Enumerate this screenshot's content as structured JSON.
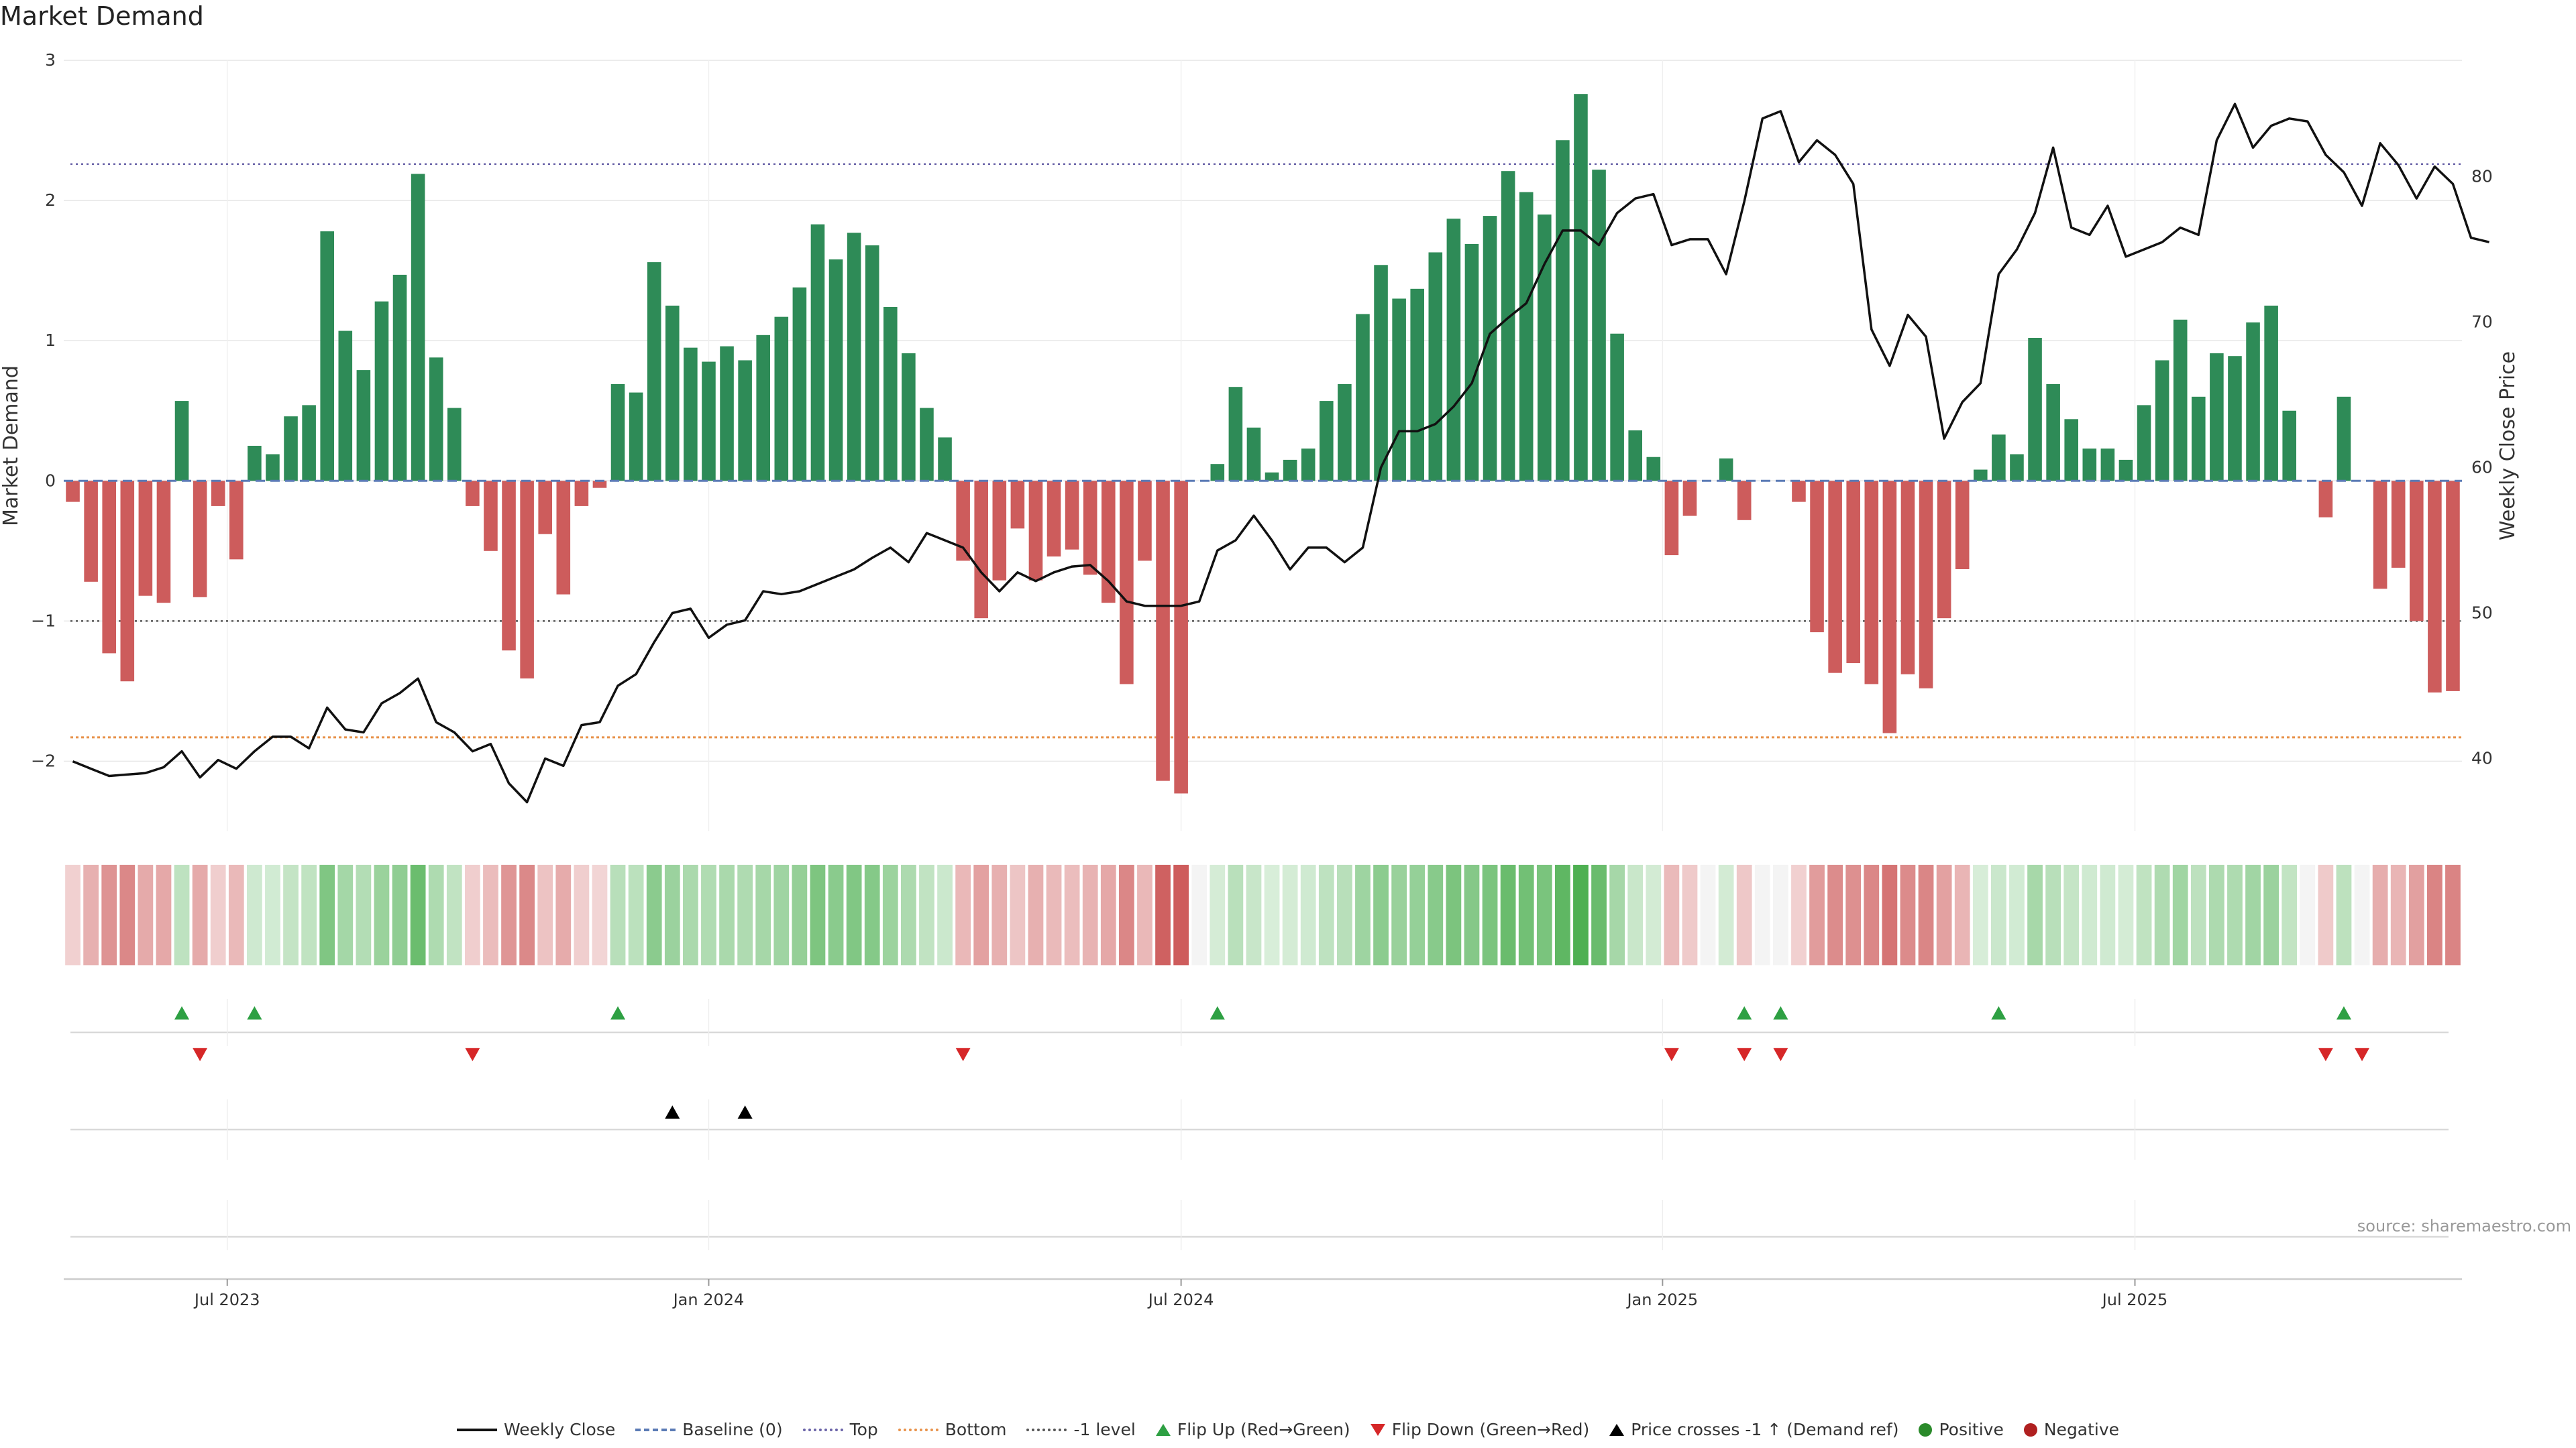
{
  "title": "Market Demand",
  "source": "source: sharemaestro.com",
  "chart_data": {
    "type": "bar",
    "start": "2023-04-26",
    "interval_days": 7,
    "title": "Market Demand",
    "ylabel_left": "Market Demand",
    "ylabel_right": "Weekly Close Price",
    "ylim_left": [
      -2.5,
      3
    ],
    "ylim_right": [
      35,
      88
    ],
    "yticks_left": [
      3,
      2,
      1,
      0,
      -1,
      -2
    ],
    "yticks_left_labels": [
      "3",
      "2",
      "1",
      "0",
      "−1",
      "−2"
    ],
    "yticks_right": [
      80,
      70,
      60,
      50,
      40
    ],
    "xticks": [
      {
        "label": "Jul 2023",
        "week": 9
      },
      {
        "label": "Jan 2024",
        "week": 35.5
      },
      {
        "label": "Jul 2024",
        "week": 61.5
      },
      {
        "label": "Jan 2025",
        "week": 88
      },
      {
        "label": "Jul 2025",
        "week": 114
      }
    ],
    "levels": {
      "top": 2.26,
      "bottom": -1.83,
      "minus_one": -1.0,
      "baseline": 0
    },
    "demand": [
      -0.15,
      -0.72,
      -1.23,
      -1.43,
      -0.82,
      -0.87,
      0.57,
      -0.83,
      -0.18,
      -0.56,
      0.25,
      0.19,
      0.46,
      0.54,
      1.78,
      1.07,
      0.79,
      1.28,
      1.47,
      2.19,
      0.88,
      0.52,
      -0.18,
      -0.5,
      -1.21,
      -1.41,
      -0.38,
      -0.81,
      -0.18,
      -0.05,
      0.69,
      0.63,
      1.56,
      1.25,
      0.95,
      0.85,
      0.96,
      0.86,
      1.04,
      1.17,
      1.38,
      1.83,
      1.58,
      1.77,
      1.68,
      1.24,
      0.91,
      0.52,
      0.31,
      -0.57,
      -0.98,
      -0.71,
      -0.34,
      -0.71,
      -0.54,
      -0.49,
      -0.67,
      -0.87,
      -1.45,
      -0.57,
      -2.14,
      -2.23,
      0.0,
      0.12,
      0.67,
      0.38,
      0.06,
      0.15,
      0.23,
      0.57,
      0.69,
      1.19,
      1.54,
      1.3,
      1.37,
      1.63,
      1.87,
      1.69,
      1.89,
      2.21,
      2.06,
      1.9,
      2.43,
      2.76,
      2.22,
      1.05,
      0.36,
      0.17,
      -0.53,
      -0.25,
      0.0,
      0.16,
      -0.28,
      0.0,
      0.0,
      -0.15,
      -1.08,
      -1.37,
      -1.3,
      -1.45,
      -1.8,
      -1.38,
      -1.48,
      -0.98,
      -0.63,
      0.08,
      0.33,
      0.19,
      1.02,
      0.69,
      0.44,
      0.23,
      0.23,
      0.15,
      0.54,
      0.86,
      1.15,
      0.6,
      0.91,
      0.89,
      1.13,
      1.25,
      0.5,
      0.0,
      -0.26,
      0.6,
      0.0,
      -0.77,
      -0.62,
      -1.0,
      -1.51,
      -1.5
    ],
    "close": [
      39.8,
      39.3,
      38.8,
      38.9,
      39.0,
      39.4,
      40.5,
      38.7,
      39.9,
      39.3,
      40.5,
      41.5,
      41.5,
      40.7,
      43.5,
      42.0,
      41.8,
      43.8,
      44.5,
      45.5,
      42.5,
      41.8,
      40.5,
      41.0,
      38.3,
      37.0,
      40.0,
      39.5,
      42.3,
      42.5,
      45.0,
      45.8,
      48.0,
      50.0,
      50.3,
      48.3,
      49.2,
      49.5,
      51.5,
      51.3,
      51.5,
      52.0,
      52.5,
      53.0,
      53.8,
      54.5,
      53.5,
      55.5,
      55.0,
      54.5,
      52.8,
      51.5,
      52.8,
      52.2,
      52.8,
      53.2,
      53.3,
      52.2,
      50.8,
      50.5,
      50.5,
      50.5,
      50.8,
      54.3,
      55.0,
      56.7,
      55.0,
      53.0,
      54.5,
      54.5,
      53.5,
      54.5,
      60.0,
      62.5,
      62.5,
      63.0,
      64.2,
      65.8,
      69.2,
      70.3,
      71.3,
      74.0,
      76.3,
      76.3,
      75.3,
      77.5,
      78.5,
      78.8,
      75.3,
      75.7,
      75.7,
      73.3,
      78.3,
      84.0,
      84.5,
      81.0,
      82.5,
      81.5,
      79.5,
      69.5,
      67.0,
      70.5,
      69.0,
      62.0,
      64.5,
      65.8,
      73.3,
      75.0,
      77.5,
      82.0,
      76.5,
      76.0,
      78.0,
      74.5,
      75.0,
      75.5,
      76.5,
      76.0,
      82.5,
      85.0,
      82.0,
      83.5,
      84.0,
      83.8,
      81.5,
      80.3,
      78.0,
      82.3,
      80.8,
      78.5,
      80.7,
      79.5,
      75.8,
      75.5
    ],
    "flip_up_weeks": [
      6,
      10,
      30,
      63,
      92,
      94,
      106,
      125
    ],
    "flip_down_weeks": [
      7,
      22,
      49,
      88,
      92,
      94,
      124,
      126
    ],
    "price_cross_up_weeks": [
      33,
      37
    ],
    "legend": [
      {
        "label": "Weekly Close",
        "kind": "line-solid",
        "color": "#111111"
      },
      {
        "label": "Baseline (0)",
        "kind": "line-dash",
        "color": "#5b7bb5"
      },
      {
        "label": "Top",
        "kind": "line-dot",
        "color": "#6a63a8"
      },
      {
        "label": "Bottom",
        "kind": "line-dot",
        "color": "#e8924a"
      },
      {
        "label": "-1 level",
        "kind": "line-dot",
        "color": "#555555"
      },
      {
        "label": "Flip Up (Red→Green)",
        "kind": "tri-up",
        "color": "#2ea043"
      },
      {
        "label": "Flip Down (Green→Red)",
        "kind": "tri-down",
        "color": "#d62728"
      },
      {
        "label": "Price crosses -1 ↑ (Demand ref)",
        "kind": "tri-up",
        "color": "#000000"
      },
      {
        "label": "Positive",
        "kind": "dot",
        "color": "#2a8a2a"
      },
      {
        "label": "Negative",
        "kind": "dot",
        "color": "#b02020"
      }
    ],
    "colors": {
      "positive": "#2e8b57",
      "negative": "#cd5c5c",
      "grid": "#e6e6e6"
    }
  }
}
